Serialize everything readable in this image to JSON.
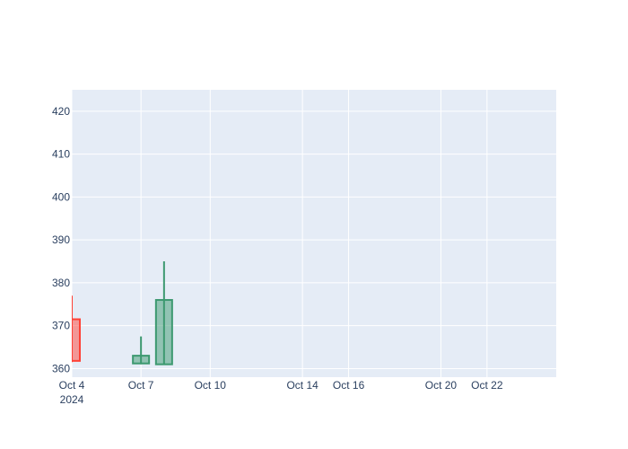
{
  "chart_data": {
    "type": "candlestick",
    "title": "",
    "xlabel": "",
    "ylabel": "",
    "background_color": "#e5ecf6",
    "grid": true,
    "grid_color": "#ffffff",
    "increasing_color": "#3d9970",
    "decreasing_color": "#ff4136",
    "x_range": [
      "2024-10-04",
      "2024-10-25"
    ],
    "y_range": [
      358,
      425
    ],
    "x_tick_values": [
      "2024-10-04",
      "2024-10-07",
      "2024-10-10",
      "2024-10-14",
      "2024-10-16",
      "2024-10-20",
      "2024-10-22"
    ],
    "x_tick_labels": [
      "Oct 4",
      "Oct 7",
      "Oct 10",
      "Oct 14",
      "Oct 16",
      "Oct 20",
      "Oct 22"
    ],
    "x_tick_sublabel": "2024",
    "y_ticks": [
      360,
      370,
      380,
      390,
      400,
      410,
      420
    ],
    "candles": [
      {
        "date": "2024-10-04",
        "open": 371.5,
        "high": 377,
        "low": 361.5,
        "close": 361.8
      },
      {
        "date": "2024-10-07",
        "open": 361.2,
        "high": 367.5,
        "low": 361.0,
        "close": 363.0
      },
      {
        "date": "2024-10-08",
        "open": 361.0,
        "high": 385.0,
        "low": 361.0,
        "close": 376.0
      }
    ]
  }
}
